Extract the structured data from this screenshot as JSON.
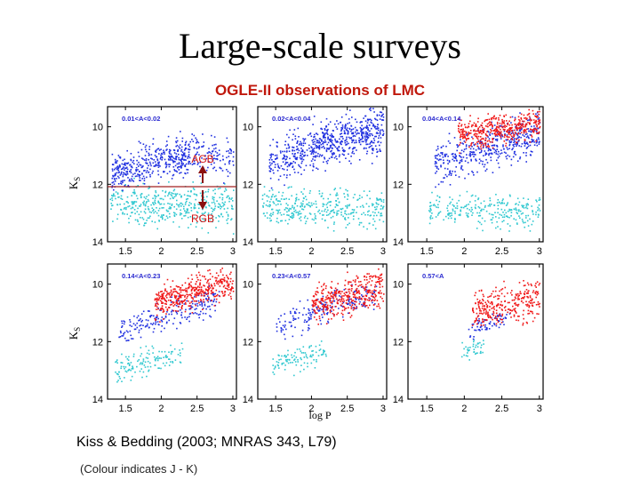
{
  "slide": {
    "title": "Large-scale surveys",
    "subtitle": "OGLE-II observations of LMC",
    "citation": "Kiss & Bedding (2003; MNRAS 343, L79)",
    "note": "(Colour indicates J - K)"
  },
  "figure": {
    "xlabel": "log P",
    "ylabel": "K",
    "ylabel_sub": "S",
    "annotations": {
      "agb": "AGB",
      "rgb": "RGB",
      "color": "#d01010"
    },
    "colors": {
      "frame": "#000000",
      "label": "#2a2ad0",
      "blue": "#2030e0",
      "cyan": "#30c8d0",
      "red": "#f01818"
    }
  },
  "chart_data": [
    {
      "type": "scatter",
      "panel_label": "0.01<A<0.02",
      "xlim": [
        1.25,
        3.05
      ],
      "ylim": [
        14,
        9.3
      ],
      "xticks": [
        "1.5",
        "2",
        "2.5",
        "3"
      ],
      "yticks": [
        "10",
        "12",
        "14"
      ],
      "series": [
        {
          "name": "blue",
          "color": "#2030e0"
        },
        {
          "name": "cyan",
          "color": "#30c8d0"
        }
      ]
    },
    {
      "type": "scatter",
      "panel_label": "0.02<A<0.04",
      "xlim": [
        1.25,
        3.05
      ],
      "ylim": [
        14,
        9.3
      ],
      "xticks": [
        "1.5",
        "2",
        "2.5",
        "3"
      ],
      "yticks": [
        "10",
        "12",
        "14"
      ],
      "series": [
        {
          "name": "blue",
          "color": "#2030e0"
        },
        {
          "name": "cyan",
          "color": "#30c8d0"
        }
      ]
    },
    {
      "type": "scatter",
      "panel_label": "0.04<A<0.14",
      "xlim": [
        1.25,
        3.05
      ],
      "ylim": [
        14,
        9.3
      ],
      "xticks": [
        "1.5",
        "2",
        "2.5",
        "3"
      ],
      "yticks": [
        "10",
        "12",
        "14"
      ],
      "series": [
        {
          "name": "blue",
          "color": "#2030e0"
        },
        {
          "name": "cyan",
          "color": "#30c8d0"
        },
        {
          "name": "red",
          "color": "#f01818"
        }
      ]
    },
    {
      "type": "scatter",
      "panel_label": "0.14<A<0.23",
      "xlim": [
        1.25,
        3.05
      ],
      "ylim": [
        14,
        9.3
      ],
      "xticks": [
        "1.5",
        "2",
        "2.5",
        "3"
      ],
      "yticks": [
        "10",
        "12",
        "14"
      ],
      "series": [
        {
          "name": "blue",
          "color": "#2030e0"
        },
        {
          "name": "cyan",
          "color": "#30c8d0"
        },
        {
          "name": "red",
          "color": "#f01818"
        }
      ]
    },
    {
      "type": "scatter",
      "panel_label": "0.23<A<0.57",
      "xlim": [
        1.25,
        3.05
      ],
      "ylim": [
        14,
        9.3
      ],
      "xticks": [
        "1.5",
        "2",
        "2.5",
        "3"
      ],
      "yticks": [
        "10",
        "12",
        "14"
      ],
      "series": [
        {
          "name": "blue",
          "color": "#2030e0"
        },
        {
          "name": "cyan",
          "color": "#30c8d0"
        },
        {
          "name": "red",
          "color": "#f01818"
        }
      ]
    },
    {
      "type": "scatter",
      "panel_label": "0.57<A",
      "xlim": [
        1.25,
        3.05
      ],
      "ylim": [
        14,
        9.3
      ],
      "xticks": [
        "1.5",
        "2",
        "2.5",
        "3"
      ],
      "yticks": [
        "10",
        "12",
        "14"
      ],
      "series": [
        {
          "name": "blue",
          "color": "#2030e0"
        },
        {
          "name": "cyan",
          "color": "#30c8d0"
        },
        {
          "name": "red",
          "color": "#f01818"
        }
      ]
    }
  ]
}
